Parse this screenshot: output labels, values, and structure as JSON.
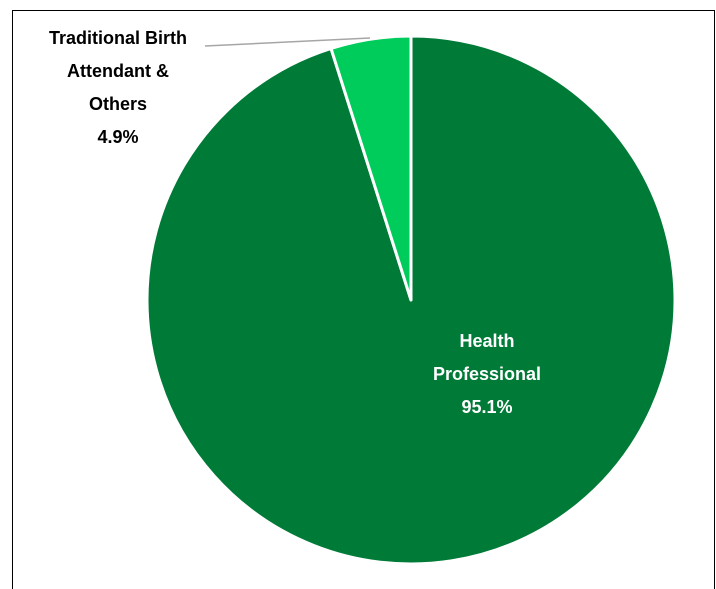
{
  "chart_data": {
    "type": "pie",
    "categories": [
      "Health\nProfessional",
      "Traditional Birth\nAttendant &\nOthers"
    ],
    "values": [
      95.1,
      4.9
    ],
    "value_labels": [
      "95.1%",
      "4.9%"
    ],
    "colors": [
      "#007a37",
      "#00cc5c"
    ],
    "label_colors": [
      "#ffffff",
      "#000000"
    ]
  }
}
